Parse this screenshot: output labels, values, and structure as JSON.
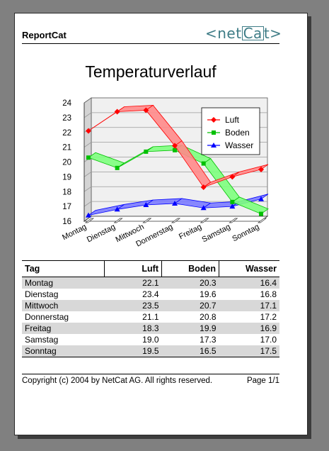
{
  "report": {
    "title": "ReportCat",
    "logo_prefix": "<net",
    "logo_box": "Ca",
    "logo_suffix": "t>"
  },
  "chart_data": {
    "type": "line",
    "title": "Temperaturverlauf",
    "categories": [
      "Montag",
      "Dienstag",
      "Mittwoch",
      "Donnerstag",
      "Freitag",
      "Samstag",
      "Sonntag"
    ],
    "y_ticks": [
      "16",
      "17",
      "18",
      "19",
      "20",
      "21",
      "22",
      "23",
      "24"
    ],
    "ylim": [
      16,
      24
    ],
    "grid": true,
    "legend_position": "top-right",
    "series": [
      {
        "name": "Luft",
        "values": [
          22.1,
          23.4,
          23.5,
          21.1,
          18.3,
          19.0,
          19.5
        ],
        "color": "#ff0000",
        "fill": "#ff8a8a",
        "marker": "diamond"
      },
      {
        "name": "Boden",
        "values": [
          20.3,
          19.6,
          20.7,
          20.8,
          19.9,
          17.3,
          16.5
        ],
        "color": "#00c000",
        "fill": "#7dff7d",
        "marker": "square"
      },
      {
        "name": "Wasser",
        "values": [
          16.4,
          16.8,
          17.1,
          17.2,
          16.9,
          17.0,
          17.5
        ],
        "color": "#0000ff",
        "fill": "#7b7bff",
        "marker": "triangle"
      }
    ]
  },
  "table": {
    "headers": [
      "Tag",
      "Luft",
      "Boden",
      "Wasser"
    ],
    "rows": [
      [
        "Montag",
        "22.1",
        "20.3",
        "16.4"
      ],
      [
        "Dienstag",
        "23.4",
        "19.6",
        "16.8"
      ],
      [
        "Mittwoch",
        "23.5",
        "20.7",
        "17.1"
      ],
      [
        "Donnerstag",
        "21.1",
        "20.8",
        "17.2"
      ],
      [
        "Freitag",
        "18.3",
        "19.9",
        "16.9"
      ],
      [
        "Samstag",
        "19.0",
        "17.3",
        "17.0"
      ],
      [
        "Sonntag",
        "19.5",
        "16.5",
        "17.5"
      ]
    ]
  },
  "footer": {
    "copyright": "Copyright (c) 2004 by NetCat AG. All rights reserved.",
    "page": "Page 1/1"
  }
}
